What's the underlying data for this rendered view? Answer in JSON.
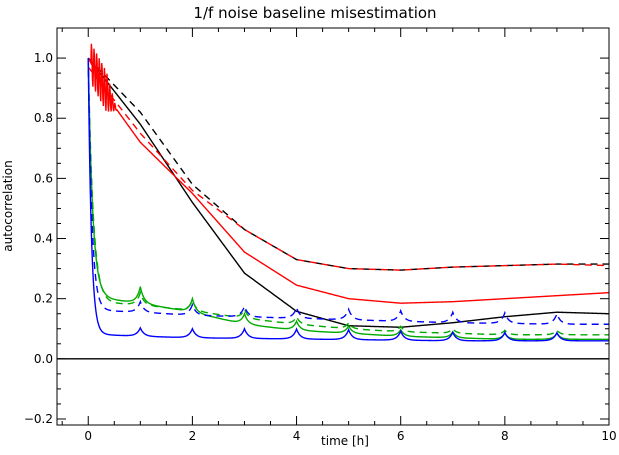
{
  "chart_data": {
    "type": "line",
    "title": "1/f noise baseline misestimation",
    "xlabel": "time [h]",
    "ylabel": "autocorrelation",
    "xlim": [
      -0.6,
      10
    ],
    "ylim": [
      -0.22,
      1.1
    ],
    "x_ticks": [
      0,
      2,
      4,
      6,
      8,
      10
    ],
    "x_tick_labels": [
      "0",
      "2",
      "4",
      "6",
      "8",
      "10"
    ],
    "y_ticks": [
      -0.2,
      0.0,
      0.2,
      0.4,
      0.6,
      0.8,
      1.0
    ],
    "y_tick_labels": [
      "−0.2",
      "0.0",
      "0.2",
      "0.4",
      "0.6",
      "0.8",
      "1.0"
    ],
    "grid": false,
    "reference_line_y": 0.0,
    "series": [
      {
        "color": "#000000",
        "style": "solid",
        "x": [
          0,
          1,
          2,
          3,
          4,
          5,
          6,
          7,
          8,
          9,
          10
        ],
        "y": [
          1.0,
          0.78,
          0.52,
          0.285,
          0.158,
          0.11,
          0.105,
          0.12,
          0.14,
          0.155,
          0.15
        ]
      },
      {
        "color": "#000000",
        "style": "dashed",
        "x": [
          0,
          1,
          2,
          3,
          4,
          5,
          6,
          7,
          8,
          9,
          10
        ],
        "y": [
          1.0,
          0.82,
          0.58,
          0.43,
          0.33,
          0.3,
          0.295,
          0.305,
          0.31,
          0.315,
          0.315
        ]
      },
      {
        "color": "#ff0000",
        "style": "solid",
        "oscillation": {
          "until": 0.55,
          "amplitude": 0.07,
          "period": 0.05
        },
        "x": [
          0,
          0.5,
          1,
          2,
          3,
          4,
          5,
          6,
          7,
          8,
          9,
          10
        ],
        "y": [
          1.0,
          0.84,
          0.72,
          0.55,
          0.355,
          0.245,
          0.2,
          0.185,
          0.19,
          0.2,
          0.21,
          0.22
        ]
      },
      {
        "color": "#ff0000",
        "style": "dashed",
        "x": [
          0,
          0.5,
          1,
          2,
          3,
          4,
          5,
          6,
          7,
          8,
          9,
          10
        ],
        "y": [
          0.97,
          0.86,
          0.75,
          0.56,
          0.43,
          0.33,
          0.3,
          0.295,
          0.305,
          0.31,
          0.315,
          0.31
        ]
      },
      {
        "color": "#00aa00",
        "style": "solid",
        "decay": {
          "start": 1.0,
          "tau": 0.085
        },
        "baseline": [
          [
            0.3,
            0.2
          ],
          [
            1,
            0.185
          ],
          [
            2,
            0.155
          ],
          [
            3,
            0.115
          ],
          [
            4,
            0.095
          ],
          [
            5,
            0.085
          ],
          [
            6,
            0.075
          ],
          [
            7,
            0.07
          ],
          [
            8,
            0.065
          ],
          [
            9,
            0.065
          ],
          [
            10,
            0.065
          ]
        ],
        "spikes": [
          [
            1,
            0.055
          ],
          [
            2,
            0.045
          ],
          [
            3,
            0.035
          ],
          [
            4,
            0.03
          ],
          [
            5,
            0.025
          ],
          [
            6,
            0.022
          ],
          [
            7,
            0.02
          ],
          [
            8,
            0.02
          ],
          [
            9,
            0.02
          ]
        ]
      },
      {
        "color": "#00aa00",
        "style": "dashed",
        "decay": {
          "start": 1.0,
          "tau": 0.095
        },
        "baseline": [
          [
            0.3,
            0.185
          ],
          [
            1,
            0.18
          ],
          [
            2,
            0.16
          ],
          [
            3,
            0.135
          ],
          [
            4,
            0.115
          ],
          [
            5,
            0.1
          ],
          [
            6,
            0.09
          ],
          [
            7,
            0.085
          ],
          [
            8,
            0.08
          ],
          [
            9,
            0.08
          ],
          [
            10,
            0.08
          ]
        ],
        "spikes": [
          [
            1,
            0.04
          ],
          [
            2,
            0.035
          ],
          [
            3,
            0.03
          ],
          [
            4,
            0.025
          ],
          [
            5,
            0.02
          ],
          [
            6,
            0.018
          ],
          [
            7,
            0.015
          ],
          [
            8,
            0.015
          ],
          [
            9,
            0.015
          ]
        ]
      },
      {
        "color": "#0000ff",
        "style": "solid",
        "decay": {
          "start": 1.0,
          "tau": 0.06
        },
        "baseline": [
          [
            0.3,
            0.08
          ],
          [
            1,
            0.075
          ],
          [
            2,
            0.07
          ],
          [
            3,
            0.068
          ],
          [
            4,
            0.066
          ],
          [
            5,
            0.064
          ],
          [
            6,
            0.062
          ],
          [
            7,
            0.06
          ],
          [
            8,
            0.06
          ],
          [
            9,
            0.06
          ],
          [
            10,
            0.06
          ]
        ],
        "spikes": [
          [
            1,
            0.028
          ],
          [
            2,
            0.03
          ],
          [
            3,
            0.032
          ],
          [
            4,
            0.033
          ],
          [
            5,
            0.033
          ],
          [
            6,
            0.03
          ],
          [
            7,
            0.028
          ],
          [
            8,
            0.028
          ],
          [
            9,
            0.027
          ]
        ]
      },
      {
        "color": "#0000ff",
        "style": "dashed",
        "decay": {
          "start": 1.0,
          "tau": 0.07
        },
        "baseline": [
          [
            0.3,
            0.16
          ],
          [
            1,
            0.155
          ],
          [
            2,
            0.145
          ],
          [
            3,
            0.14
          ],
          [
            4,
            0.135
          ],
          [
            5,
            0.13
          ],
          [
            6,
            0.125
          ],
          [
            7,
            0.12
          ],
          [
            8,
            0.118
          ],
          [
            9,
            0.115
          ],
          [
            10,
            0.115
          ]
        ],
        "spikes": [
          [
            1,
            0.035
          ],
          [
            2,
            0.035
          ],
          [
            3,
            0.035
          ],
          [
            4,
            0.035
          ],
          [
            5,
            0.035
          ],
          [
            6,
            0.035
          ],
          [
            7,
            0.035
          ],
          [
            8,
            0.035
          ],
          [
            9,
            0.035
          ]
        ]
      }
    ]
  }
}
